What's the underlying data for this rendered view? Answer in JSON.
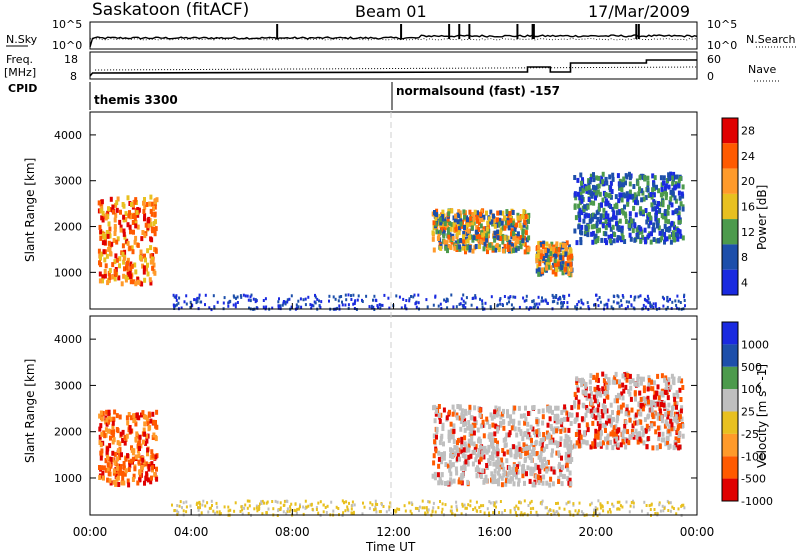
{
  "header": {
    "station": "Saskatoon (fitACF)",
    "beam": "Beam 01",
    "date": "17/Mar/2009"
  },
  "noise_panel": {
    "left_label": "N.Sky",
    "left_tick_top": "10^5",
    "left_tick_bottom": "10^0",
    "right_label": "N.Search",
    "right_tick_top": "10^5",
    "right_tick_bottom": "10^0",
    "spikes_hours": [
      17.5,
      17.55,
      21.6,
      21.7,
      14.2,
      14.6,
      15.0,
      16.9,
      12.3,
      7.4
    ]
  },
  "freq_panel": {
    "left_label_1": "Freq.",
    "left_label_2": "[MHz]",
    "left_tick_top": "18",
    "left_tick_bottom": "8",
    "right_label": "Nave",
    "right_tick_top": "60",
    "right_tick_bottom": "0"
  },
  "cpid_panel": {
    "label": "CPID",
    "entries": [
      "themis 3300",
      "normalsound (fast) -157"
    ]
  },
  "chart_data": [
    {
      "type": "heatmap",
      "title": "",
      "ylabel": "Slant Range [km]",
      "ylim": [
        200,
        4500
      ],
      "yticks": [
        1000,
        2000,
        3000,
        4000
      ],
      "xlim": [
        0,
        24
      ],
      "colorbar_label": "Power [dB]",
      "colorbar_ticks": [
        "28",
        "24",
        "20",
        "16",
        "12",
        "8",
        "4"
      ],
      "colorbar_colors": [
        "#e00000",
        "#ff5a00",
        "#ff9a2a",
        "#e8c020",
        "#4c9a4c",
        "#1d4faa",
        "#1a2ae0"
      ],
      "regions": [
        {
          "h0": 0.3,
          "h1": 2.6,
          "r0": 800,
          "r1": 2700,
          "level": "high"
        },
        {
          "h0": 13.5,
          "h1": 17.3,
          "r0": 1500,
          "r1": 2400,
          "level": "mid"
        },
        {
          "h0": 17.6,
          "h1": 19.0,
          "r0": 1000,
          "r1": 1700,
          "level": "mid"
        },
        {
          "h0": 19.1,
          "h1": 23.4,
          "r0": 1700,
          "r1": 3200,
          "level": "low"
        }
      ]
    },
    {
      "type": "heatmap",
      "title": "",
      "ylabel": "Slant Range [km]",
      "ylim": [
        200,
        4500
      ],
      "yticks": [
        1000,
        2000,
        3000,
        4000
      ],
      "xlim": [
        0,
        24
      ],
      "colorbar_label": "Velocity [m s^-1]",
      "colorbar_ticks": [
        "1000",
        "500",
        "100",
        "25",
        "-25",
        "-100",
        "-500",
        "-1000"
      ],
      "colorbar_colors": [
        "#1a2ae0",
        "#1d4faa",
        "#4c9a4c",
        "#bfbfbf",
        "#e8c020",
        "#ff9a2a",
        "#ff5a00",
        "#e00000"
      ],
      "regions": [
        {
          "h0": 0.3,
          "h1": 2.6,
          "r0": 900,
          "r1": 2500,
          "level": "neg"
        },
        {
          "h0": 13.5,
          "h1": 19.0,
          "r0": 900,
          "r1": 2600,
          "level": "zero"
        },
        {
          "h0": 19.1,
          "h1": 23.4,
          "r0": 1700,
          "r1": 3300,
          "level": "mix"
        }
      ]
    }
  ],
  "xaxis": {
    "ticks": [
      "00:00",
      "04:00",
      "08:00",
      "12:00",
      "16:00",
      "20:00",
      "00:00"
    ],
    "label": "Time UT"
  },
  "colors": {
    "grey_dash": "#c8c8c8"
  }
}
